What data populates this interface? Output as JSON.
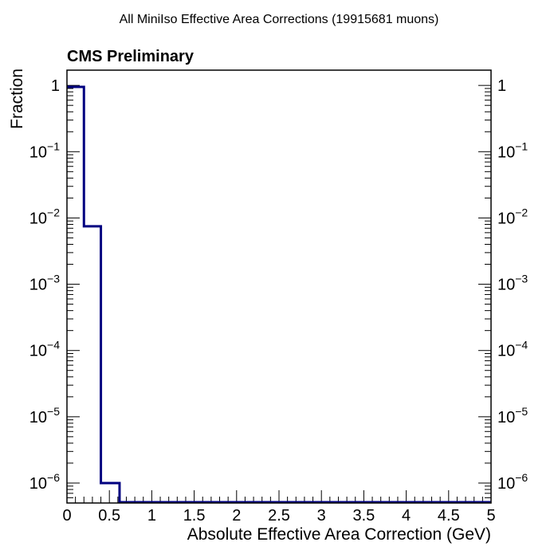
{
  "chart_data": {
    "type": "histogram",
    "title": "All MiniIso Effective Area Corrections (19915681 muons)",
    "label": "CMS Preliminary",
    "xlabel": "Absolute Effective Area Correction (GeV)",
    "ylabel": "Fraction",
    "xlim": [
      0,
      5
    ],
    "ylim": [
      5e-07,
      1.7
    ],
    "yscale": "log",
    "grid": false,
    "line_color": "#000080",
    "x_ticks": [
      0,
      0.5,
      1,
      1.5,
      2,
      2.5,
      3,
      3.5,
      4,
      4.5,
      5
    ],
    "x_tick_labels": [
      "0",
      "0.5",
      "1",
      "1.5",
      "2",
      "2.5",
      "3",
      "3.5",
      "4",
      "4.5",
      "5"
    ],
    "y_tick_labels": [
      {
        "value": 1,
        "base": "1",
        "exp": ""
      },
      {
        "value": 0.1,
        "base": "10",
        "exp": "−1"
      },
      {
        "value": 0.01,
        "base": "10",
        "exp": "−2"
      },
      {
        "value": 0.001,
        "base": "10",
        "exp": "−3"
      },
      {
        "value": 0.0001,
        "base": "10",
        "exp": "−4"
      },
      {
        "value": 1e-05,
        "base": "10",
        "exp": "−5"
      },
      {
        "value": 1e-06,
        "base": "10",
        "exp": "−6"
      }
    ],
    "bins": [
      {
        "x0": 0,
        "x1": 0.2,
        "value": 0.95
      },
      {
        "x0": 0.2,
        "x1": 0.4,
        "value": 0.0075
      },
      {
        "x0": 0.4,
        "x1": 0.62,
        "value": 1e-06
      },
      {
        "x0": 0.62,
        "x1": 5,
        "value": 0
      }
    ]
  }
}
